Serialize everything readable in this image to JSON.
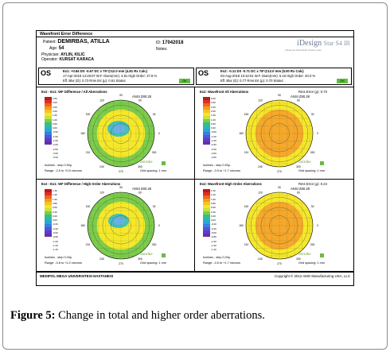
{
  "report": {
    "title": "Wavefront Error Difference",
    "patient_label": "Patient:",
    "patient": "DEMIRBAS, ATILLA",
    "id_label": "ID:",
    "id": "17042018",
    "age_label": "Age:",
    "age": "54",
    "notes_label": "Notes:",
    "physician_label": "Physician:",
    "physician": "AYLIN, KILIC",
    "operator_label": "Operator:",
    "operator": "KURSAT KARACA",
    "brand": "iDesign",
    "brand_product": "Star S4 IR",
    "brand_sub": "Advanced WaveScan Studio    Laser"
  },
  "eyes": [
    {
      "eye": "OS",
      "line1": "Ex1: +0.84 DS -0.67 DC x 79°@12.0 mm (4.81 Rx Calc)",
      "line2": "17-Apr-2018 14:28:07    W.F. Diam(mm): 4.81    High Order: 27.8 %",
      "line3": "Eff. Blur (D): 0.73    Rms Err.(μ): 0.61    Status:",
      "status": "OK"
    },
    {
      "eye": "OS",
      "line1": "Ex2: -0.11 DS -0.71 DC x 78°@12.0 mm (5.00 Rx Calc)",
      "line2": "03-Aug-2018 10:42:51    W.F. Diam(mm): 5.16    High Order: 40.0 %",
      "line3": "Eff. Blur (D): 0.77    Rms Err.(μ): 0.70    Status:",
      "status": "OK"
    }
  ],
  "panels": [
    {
      "title": "Ex2 - Ex1: WF Difference / All Aberrations",
      "ansi": "ANSI Z80.28",
      "contours": "Isolines - step 0.50μ",
      "range": "Range: -2.5 to +0.5 microns",
      "grid": "Grid spacing: 1 mm",
      "extra": "",
      "scale": [
        "3.50",
        "3.00",
        "2.50",
        "2.00",
        "1.50",
        "1.00",
        "0.50",
        "0.00",
        "-0.50",
        "-1.00",
        "-1.50",
        "-2.00",
        "-2.50",
        "-3.00",
        "-3.50"
      ]
    },
    {
      "title": "Ex2: Wavefront All Aberrations",
      "ansi": "ANSI Z80.28",
      "contours": "Isolines - step 0.50μ",
      "range": "Range: -0.5 to +1.7 microns",
      "grid": "Grid spacing: 1 mm",
      "extra": "Rms Error (μ): 0.70",
      "scale": [
        "3.50",
        "3.00",
        "2.50",
        "2.00",
        "1.50",
        "1.00",
        "0.50",
        "0.00",
        "-0.50",
        "-1.00",
        "-1.50",
        "-2.00",
        "-2.50",
        "-3.00",
        "-3.50"
      ]
    },
    {
      "title": "Ex2 - Ex1: WF Difference / High Order Aberrations",
      "ansi": "ANSI Z80.28",
      "contours": "Isolines - step 0.20μ",
      "range": "Range: -0.8 to +1.2 microns",
      "grid": "Grid spacing: 1 mm",
      "extra": "",
      "scale": [
        "1.40",
        "1.20",
        "1.00",
        "0.80",
        "0.60",
        "0.40",
        "0.20",
        "0.00",
        "-0.20",
        "-0.40",
        "-0.60",
        "-0.80",
        "-1.00",
        "-1.20",
        "-1.40"
      ]
    },
    {
      "title": "Ex2: Wavefront High Order Aberrations",
      "ansi": "ANSI Z80.28",
      "contours": "Isolines - step 0.20μ",
      "range": "Range: -0.5 to +1.7 microns",
      "grid": "Grid spacing: 1 mm",
      "extra": "Rms Error (μ): 0.24",
      "scale": [
        "1.40",
        "1.20",
        "1.00",
        "0.80",
        "0.60",
        "0.40",
        "0.20",
        "0.00",
        "-0.20",
        "-0.40",
        "-0.60",
        "-0.80",
        "-1.00",
        "-1.20",
        "-1.40"
      ]
    }
  ],
  "axis": {
    "deg0": "0",
    "deg30": "30",
    "deg60": "60",
    "deg90": "90",
    "deg120": "120",
    "deg150": "150",
    "deg180": "180",
    "deg210": "210",
    "deg240": "240",
    "deg270": "270",
    "deg300": "300",
    "deg330": "330"
  },
  "zernike_label": "Zernike",
  "footer": {
    "left": "MEDIPOL MEGA UNIVERSITESI HASTANESI",
    "right": "Copyright © 2012 AMO Manufacturing USA, LLC"
  },
  "caption": {
    "label": "Figure 5:",
    "text": " Change in total and higher order aberrations."
  },
  "colors": {
    "scale": [
      "#c0161c",
      "#e0301e",
      "#f0661c",
      "#f59a20",
      "#f5c420",
      "#f2e62a",
      "#c8e040",
      "#7ccd4a",
      "#3cbf74",
      "#2ab8b4",
      "#2aa4e0",
      "#3a7ee0",
      "#4a5ad8",
      "#5a3ec8",
      "#6a2cb0"
    ],
    "map_yellow": "#f5e82a",
    "map_green": "#7ccd4a",
    "map_cyan": "#48c0b8",
    "map_orange": "#f5a82a"
  }
}
